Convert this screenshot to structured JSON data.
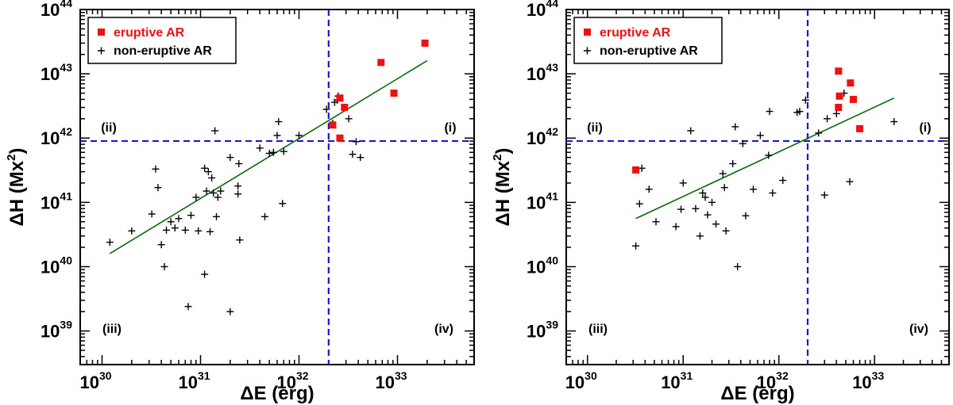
{
  "chart_data": [
    {
      "type": "scatter",
      "xscale": "log",
      "yscale": "log",
      "xlim": [
        6e+29,
        6e+33
      ],
      "ylim": [
        3e+38,
        1e+44
      ],
      "xlabel": "ΔE (erg)",
      "ylabel_main": "ΔH (Mx",
      "ylabel_sup": "2",
      "ylabel_end": ")",
      "xticks": [
        {
          "base": "10",
          "exp": "30",
          "value": 1e+30
        },
        {
          "base": "10",
          "exp": "31",
          "value": 1e+31
        },
        {
          "base": "10",
          "exp": "32",
          "value": 1e+32
        },
        {
          "base": "10",
          "exp": "33",
          "value": 1e+33
        }
      ],
      "yticks": [
        {
          "base": "10",
          "exp": "39",
          "value": 1e+39
        },
        {
          "base": "10",
          "exp": "40",
          "value": 1e+40
        },
        {
          "base": "10",
          "exp": "41",
          "value": 1e+41
        },
        {
          "base": "10",
          "exp": "42",
          "value": 1e+42
        },
        {
          "base": "10",
          "exp": "43",
          "value": 1e+43
        },
        {
          "base": "10",
          "exp": "44",
          "value": 1e+44
        }
      ],
      "threshold_x": 2e+32,
      "threshold_y": 9e+41,
      "quadrants": [
        "(i)",
        "(ii)",
        "(iii)",
        "(iv)"
      ],
      "legend": {
        "placement": "top-left",
        "entries": [
          "eruptive AR",
          "non-eruptive AR"
        ]
      },
      "colors": {
        "eruptive": "#ee1111",
        "noneruptive": "#000000",
        "fit": "#0a6a0a",
        "threshold": "#1a1acc"
      },
      "fit_line": {
        "x": [
          1.2e+30,
          2e+33
        ],
        "y": [
          1.6e+40,
          1.6e+43
        ]
      },
      "series": [
        {
          "name": "eruptive AR",
          "marker": "square",
          "x": [
            1.9e+33,
            6.8e+32,
            9.2e+32,
            2.6e+32,
            2.9e+32,
            2.2e+32,
            2.6e+32
          ],
          "y": [
            3e+43,
            1.5e+43,
            5e+42,
            4.2e+42,
            3e+42,
            1.6e+42,
            1e+42
          ]
        },
        {
          "name": "non-eruptive AR",
          "marker": "plus",
          "x": [
            1.2e+30,
            2e+30,
            3.2e+30,
            3.5e+30,
            3.7e+30,
            4e+30,
            4.3e+30,
            4.5e+30,
            5e+30,
            5.5e+30,
            6e+30,
            7e+30,
            7.5e+30,
            8e+30,
            9e+30,
            9.5e+30,
            1.1e+31,
            1.1e+31,
            1.15e+31,
            1.2e+31,
            1.25e+31,
            1.3e+31,
            1.35e+31,
            1.4e+31,
            1.45e+31,
            1.5e+31,
            1.6e+31,
            2e+31,
            2e+31,
            2.4e+31,
            2.4e+31,
            2.45e+31,
            2.5e+31,
            4e+31,
            4.5e+31,
            5e+31,
            5.5e+31,
            6e+31,
            6.2e+31,
            6.8e+31,
            7e+31,
            1e+32,
            1.9e+32,
            2.2e+32,
            2.3e+32,
            2.45e+32,
            2.5e+32,
            3.2e+32,
            3.5e+32,
            3.8e+32,
            4.2e+32
          ],
          "y": [
            2.4e+40,
            3.6e+40,
            6.6e+40,
            3.3e+41,
            1.7e+41,
            2.2e+40,
            1e+40,
            3.7e+40,
            5e+40,
            4e+40,
            5.6e+40,
            3.7e+40,
            2.4e+39,
            6.3e+40,
            1.2e+41,
            3.6e+40,
            3.4e+41,
            7.6e+39,
            1.5e+41,
            3e+41,
            3.5e+40,
            2.4e+41,
            1.4e+41,
            1.3e+42,
            6e+40,
            1.2e+41,
            1.5e+41,
            5e+41,
            2e+39,
            1.8e+41,
            1.35e+41,
            4e+41,
            2.6e+40,
            7e+41,
            6e+40,
            5.8e+41,
            6e+41,
            1.1e+42,
            1.8e+42,
            9.6e+40,
            6.2e+41,
            1.1e+42,
            2.8e+42,
            1.7e+42,
            3.6e+42,
            3.9e+42,
            4.5e+42,
            2e+42,
            5.6e+41,
            8.8e+41,
            5e+41
          ]
        }
      ]
    },
    {
      "type": "scatter",
      "xscale": "log",
      "yscale": "log",
      "xlim": [
        6e+29,
        6e+33
      ],
      "ylim": [
        3e+38,
        1e+44
      ],
      "xlabel": "ΔE (erg)",
      "ylabel_main": "ΔH (Mx",
      "ylabel_sup": "2",
      "ylabel_end": ")",
      "xticks": [
        {
          "base": "10",
          "exp": "30",
          "value": 1e+30
        },
        {
          "base": "10",
          "exp": "31",
          "value": 1e+31
        },
        {
          "base": "10",
          "exp": "32",
          "value": 1e+32
        },
        {
          "base": "10",
          "exp": "33",
          "value": 1e+33
        }
      ],
      "yticks": [
        {
          "base": "10",
          "exp": "39",
          "value": 1e+39
        },
        {
          "base": "10",
          "exp": "40",
          "value": 1e+40
        },
        {
          "base": "10",
          "exp": "41",
          "value": 1e+41
        },
        {
          "base": "10",
          "exp": "42",
          "value": 1e+42
        },
        {
          "base": "10",
          "exp": "43",
          "value": 1e+43
        },
        {
          "base": "10",
          "exp": "44",
          "value": 1e+44
        }
      ],
      "threshold_x": 2e+32,
      "threshold_y": 9e+41,
      "quadrants": [
        "(i)",
        "(ii)",
        "(iii)",
        "(iv)"
      ],
      "legend": {
        "placement": "top-left",
        "entries": [
          "eruptive AR",
          "non-eruptive AR"
        ]
      },
      "colors": {
        "eruptive": "#ee1111",
        "noneruptive": "#000000",
        "fit": "#0a6a0a",
        "threshold": "#1a1acc"
      },
      "fit_line": {
        "x": [
          3.2e+30,
          1.6e+33
        ],
        "y": [
          5.6e+40,
          4.2e+42
        ]
      },
      "series": [
        {
          "name": "eruptive AR",
          "marker": "square",
          "x": [
            3.2e+30,
            4.2e+32,
            4.3e+32,
            5.6e+32,
            6e+32,
            4.2e+32,
            7e+32
          ],
          "y": [
            3.2e+41,
            1.1e+43,
            4.5e+42,
            7.2e+42,
            4e+42,
            3e+42,
            1.4e+42
          ]
        },
        {
          "name": "non-eruptive AR",
          "marker": "plus",
          "x": [
            3.2e+30,
            3.5e+30,
            3.7e+30,
            4.4e+30,
            5.2e+30,
            8.4e+30,
            9.5e+30,
            1e+31,
            1.2e+31,
            1.35e+31,
            1.5e+31,
            1.6e+31,
            1.7e+31,
            1.8e+31,
            2e+31,
            2.2e+31,
            2.6e+31,
            2.7e+31,
            2.8e+31,
            3.3e+31,
            3.5e+31,
            3.7e+31,
            4.2e+31,
            4.5e+31,
            5.4e+31,
            6.4e+31,
            7.8e+31,
            8e+31,
            8.6e+31,
            1.1e+32,
            1.55e+32,
            1.65e+32,
            1.9e+32,
            2.6e+32,
            3e+32,
            3.2e+32,
            4e+32,
            4.8e+32,
            5.5e+32,
            1.6e+33
          ],
          "y": [
            2.1e+40,
            9.5e+40,
            3.4e+41,
            1.6e+41,
            5e+40,
            4.2e+40,
            7.8e+40,
            2e+41,
            1.3e+42,
            8e+40,
            3e+40,
            1.4e+41,
            1.2e+41,
            6.4e+40,
            1e+41,
            4.6e+40,
            2.8e+41,
            1.7e+41,
            3.6e+40,
            4e+41,
            1.5e+42,
            1e+40,
            8.2e+41,
            6.2e+40,
            1.6e+41,
            1.1e+42,
            5.4e+41,
            2.6e+42,
            1.4e+41,
            2.2e+41,
            2.5e+42,
            2.6e+42,
            3.9e+42,
            1.2e+42,
            1.3e+41,
            2e+42,
            2.4e+42,
            5e+42,
            2.1e+41,
            1.8e+42
          ]
        }
      ]
    }
  ]
}
